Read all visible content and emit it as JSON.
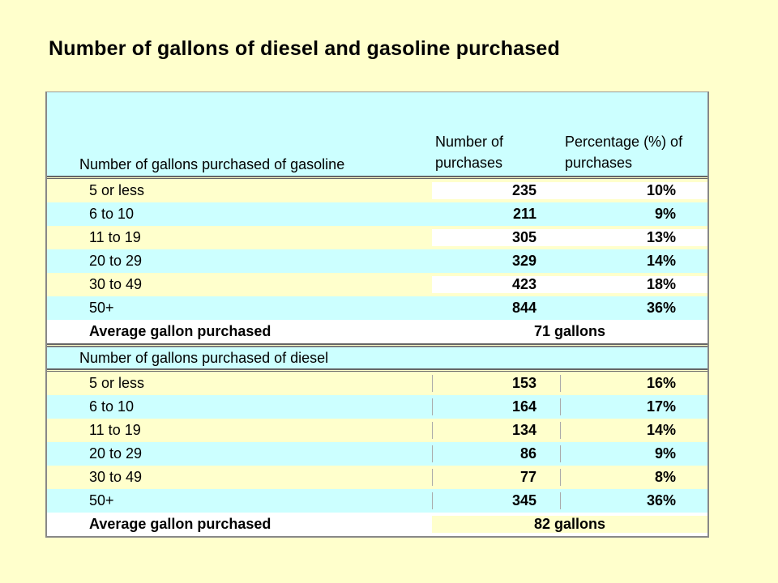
{
  "title": "Number of gallons of diesel and gasoline purchased",
  "header": {
    "col1": "Number of gallons purchased of gasoline",
    "col2_line1": "Number of",
    "col2_line2": "purchases",
    "col3_line1": "Percentage (%) of",
    "col3_line2": "purchases"
  },
  "chart_data": {
    "type": "table",
    "gasoline": {
      "section_label": "Number of gallons purchased of gasoline",
      "rows": [
        {
          "range": "5 or less",
          "count": "235",
          "pct": "10%"
        },
        {
          "range": "6 to 10",
          "count": "211",
          "pct": "9%"
        },
        {
          "range": "11 to 19",
          "count": "305",
          "pct": "13%"
        },
        {
          "range": "20 to 29",
          "count": "329",
          "pct": "14%"
        },
        {
          "range": "30 to 49",
          "count": "423",
          "pct": "18%"
        },
        {
          "range": "50+",
          "count": "844",
          "pct": "36%"
        }
      ],
      "average_label": "Average gallon purchased",
      "average_value": "71 gallons"
    },
    "diesel": {
      "section_label": "Number of gallons purchased of diesel",
      "rows": [
        {
          "range": "5 or less",
          "count": "153",
          "pct": "16%"
        },
        {
          "range": "6 to 10",
          "count": "164",
          "pct": "17%"
        },
        {
          "range": "11 to 19",
          "count": "134",
          "pct": "14%"
        },
        {
          "range": "20 to 29",
          "count": "86",
          "pct": "9%"
        },
        {
          "range": "30 to 49",
          "count": "77",
          "pct": "8%"
        },
        {
          "range": "50+",
          "count": "345",
          "pct": "36%"
        }
      ],
      "average_label": "Average gallon purchased",
      "average_value": "82 gallons"
    }
  },
  "colors": {
    "background": "#FFFFCC",
    "cyan_row": "#CCFFFF",
    "white_cell": "#FFFFFF"
  }
}
